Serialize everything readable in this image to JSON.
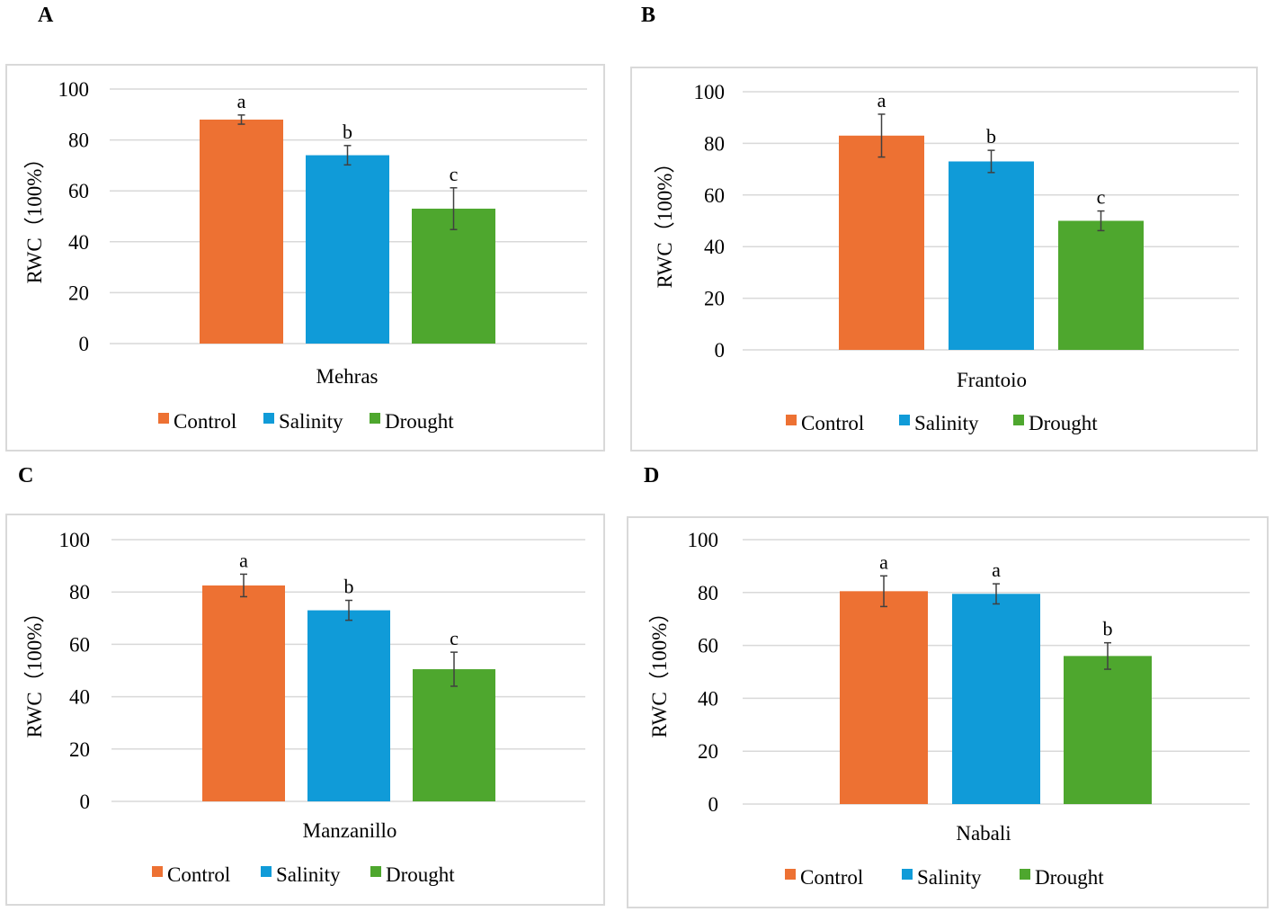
{
  "figure": {
    "colors": {
      "Control": "#ed7133",
      "Salinity": "#109bd8",
      "Drought": "#4ea72e",
      "grid": "#d9d9d9",
      "error": "#404040"
    }
  },
  "chart_data": [
    {
      "panel": "A",
      "type": "bar",
      "category": "Mehras",
      "ylabel": "RWC（100%）",
      "ylim": [
        0,
        100
      ],
      "yticks": [
        0,
        20,
        40,
        60,
        80,
        100
      ],
      "series": [
        {
          "name": "Control",
          "value": 88,
          "error": 1.8,
          "letter": "a"
        },
        {
          "name": "Salinity",
          "value": 74,
          "error": 3.8,
          "letter": "b"
        },
        {
          "name": "Drought",
          "value": 53,
          "error": 8.2,
          "letter": "c"
        }
      ],
      "legend": [
        "Control",
        "Salinity",
        "Drought"
      ],
      "legend_position": "bottom",
      "grid": true
    },
    {
      "panel": "B",
      "type": "bar",
      "category": "Frantoio",
      "ylabel": "RWC（100%）",
      "ylim": [
        0,
        100
      ],
      "yticks": [
        0,
        20,
        40,
        60,
        80,
        100
      ],
      "series": [
        {
          "name": "Control",
          "value": 83,
          "error": 8.3,
          "letter": "a"
        },
        {
          "name": "Salinity",
          "value": 73,
          "error": 4.3,
          "letter": "b"
        },
        {
          "name": "Drought",
          "value": 50,
          "error": 3.8,
          "letter": "c"
        }
      ],
      "legend": [
        "Control",
        "Salinity",
        "Drought"
      ],
      "legend_position": "bottom",
      "grid": true
    },
    {
      "panel": "C",
      "type": "bar",
      "category": "Manzanillo",
      "ylabel": "RWC（100%）",
      "ylim": [
        0,
        100
      ],
      "yticks": [
        0,
        20,
        40,
        60,
        80,
        100
      ],
      "series": [
        {
          "name": "Control",
          "value": 82.5,
          "error": 4.3,
          "letter": "a"
        },
        {
          "name": "Salinity",
          "value": 73,
          "error": 3.8,
          "letter": "b"
        },
        {
          "name": "Drought",
          "value": 50.5,
          "error": 6.5,
          "letter": "c"
        }
      ],
      "legend": [
        "Control",
        "Salinity",
        "Drought"
      ],
      "legend_position": "bottom",
      "grid": true
    },
    {
      "panel": "D",
      "type": "bar",
      "category": "Nabali",
      "ylabel": "RWC（100%）",
      "ylim": [
        0,
        100
      ],
      "yticks": [
        0,
        20,
        40,
        60,
        80,
        100
      ],
      "series": [
        {
          "name": "Control",
          "value": 80.5,
          "error": 5.8,
          "letter": "a"
        },
        {
          "name": "Salinity",
          "value": 79.5,
          "error": 3.8,
          "letter": "a"
        },
        {
          "name": "Drought",
          "value": 56,
          "error": 5.0,
          "letter": "b"
        }
      ],
      "legend": [
        "Control",
        "Salinity",
        "Drought"
      ],
      "legend_position": "bottom",
      "grid": true
    }
  ]
}
